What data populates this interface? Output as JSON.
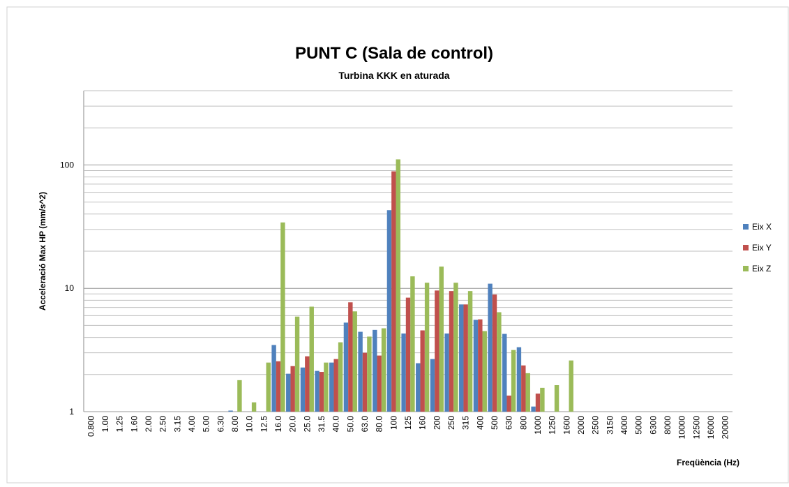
{
  "chart_data": {
    "type": "bar",
    "title": "PUNT C (Sala de control)",
    "subtitle": "Turbina KKK en aturada",
    "y_label": "Acceleració Max HP (mm/s^2)",
    "x_label": "Freqüència (Hz)",
    "categories": [
      "0.800",
      "1.00",
      "1.25",
      "1.60",
      "2.00",
      "2.50",
      "3.15",
      "4.00",
      "5.00",
      "6.30",
      "8.00",
      "10.0",
      "12.5",
      "16.0",
      "20.0",
      "25.0",
      "31.5",
      "40.0",
      "50.0",
      "63.0",
      "80.0",
      "100",
      "125",
      "160",
      "200",
      "250",
      "315",
      "400",
      "500",
      "630",
      "800",
      "1000",
      "1250",
      "1600",
      "2000",
      "2500",
      "3150",
      "4000",
      "5000",
      "6300",
      "8000",
      "10000",
      "12500",
      "16000",
      "20000"
    ],
    "series": [
      {
        "name": "Eix X",
        "color": "#4f81bd",
        "values": [
          null,
          null,
          null,
          null,
          null,
          null,
          null,
          null,
          null,
          null,
          1.02,
          null,
          null,
          3.47,
          2.03,
          2.28,
          2.14,
          2.5,
          5.27,
          4.44,
          4.6,
          43,
          4.3,
          2.47,
          2.67,
          4.3,
          7.4,
          5.55,
          10.9,
          4.27,
          3.33,
          1.1,
          null,
          null,
          null,
          null,
          null,
          null,
          null,
          null,
          null,
          null,
          null,
          null,
          null
        ]
      },
      {
        "name": "Eix Y",
        "color": "#c0504d",
        "values": [
          null,
          null,
          null,
          null,
          null,
          null,
          null,
          null,
          null,
          null,
          null,
          null,
          null,
          2.56,
          2.34,
          2.81,
          2.1,
          2.67,
          7.7,
          3.0,
          2.85,
          88.8,
          8.4,
          4.56,
          9.6,
          9.5,
          7.4,
          5.6,
          8.9,
          1.35,
          2.37,
          1.4,
          null,
          null,
          null,
          null,
          null,
          null,
          null,
          null,
          null,
          null,
          null,
          null,
          null
        ]
      },
      {
        "name": "Eix Z",
        "color": "#9bbb59",
        "values": [
          null,
          null,
          null,
          null,
          null,
          null,
          null,
          null,
          null,
          null,
          1.8,
          1.19,
          2.5,
          34.2,
          5.9,
          7.1,
          2.5,
          3.65,
          6.5,
          4.06,
          4.74,
          111,
          12.5,
          11.1,
          15.0,
          11.1,
          9.5,
          4.5,
          6.4,
          3.16,
          2.05,
          1.56,
          1.64,
          2.6,
          null,
          null,
          null,
          null,
          null,
          null,
          null,
          null,
          null,
          null,
          null
        ]
      }
    ],
    "ylim": [
      1,
      400
    ],
    "yticks": [
      1,
      10,
      100
    ],
    "log_y": true,
    "grid": true,
    "minor_yticks": [
      2,
      3,
      4,
      5,
      6,
      7,
      8,
      9,
      20,
      30,
      40,
      50,
      60,
      70,
      80,
      90,
      200,
      300,
      400
    ],
    "legend": "right"
  }
}
